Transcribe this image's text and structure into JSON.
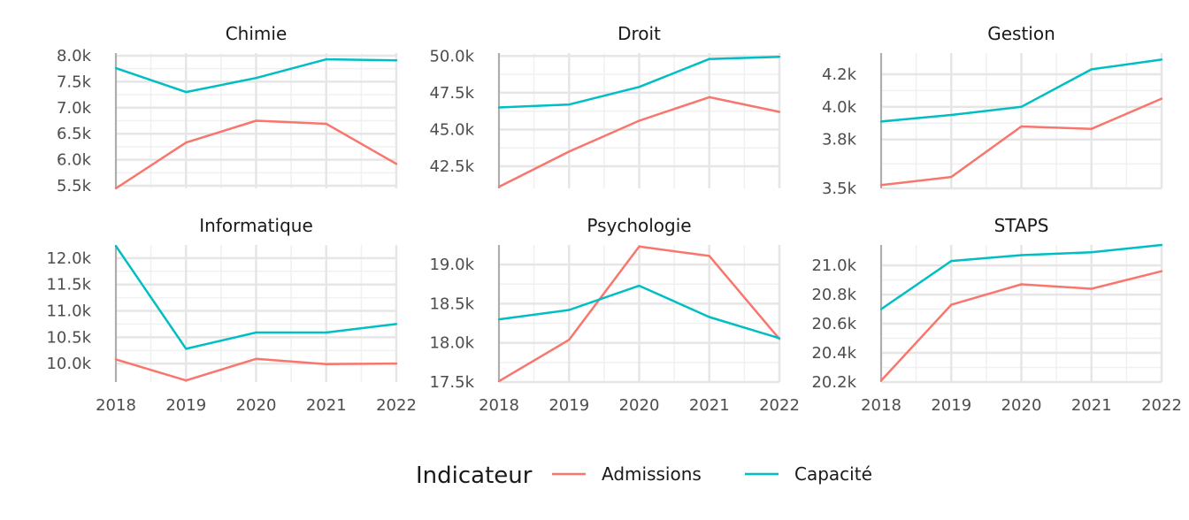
{
  "chart_data": {
    "type": "line",
    "x": [
      2018,
      2019,
      2020,
      2021,
      2022
    ],
    "legend": {
      "title": "Indicateur",
      "position": "bottom",
      "entries": [
        {
          "name": "Admissions",
          "color": "#F8766D"
        },
        {
          "name": "Capacité",
          "color": "#00BFC4"
        }
      ]
    },
    "grid": true,
    "panels": [
      {
        "title": "Chimie",
        "ylim": [
          5450,
          8050
        ],
        "yticks": [
          5500,
          6000,
          6500,
          7000,
          7500,
          8000
        ],
        "ytick_labels": [
          "5.5k",
          "6.0k",
          "6.5k",
          "7.0k",
          "7.5k",
          "8.0k"
        ],
        "series": [
          {
            "name": "Admissions",
            "values": [
              5450,
              6330,
              6750,
              6690,
              5920
            ]
          },
          {
            "name": "Capacité",
            "values": [
              7760,
              7300,
              7570,
              7930,
              7910
            ]
          }
        ]
      },
      {
        "title": "Droit",
        "ylim": [
          41000,
          50200
        ],
        "yticks": [
          42500,
          45000,
          47500,
          50000
        ],
        "ytick_labels": [
          "42.5k",
          "45.0k",
          "47.5k",
          "50.0k"
        ],
        "series": [
          {
            "name": "Admissions",
            "values": [
              41100,
              43500,
              45600,
              47200,
              46200
            ]
          },
          {
            "name": "Capacité",
            "values": [
              46500,
              46700,
              47900,
              49800,
              49950
            ]
          }
        ]
      },
      {
        "title": "Gestion",
        "ylim": [
          3500,
          4330
        ],
        "yticks": [
          3500,
          3800,
          4000,
          4200
        ],
        "ytick_labels": [
          "3.5k",
          "3.8k",
          "4.0k",
          "4.2k"
        ],
        "series": [
          {
            "name": "Admissions",
            "values": [
              3520,
              3570,
              3880,
              3865,
              4050
            ]
          },
          {
            "name": "Capacité",
            "values": [
              3910,
              3950,
              4000,
              4230,
              4290
            ]
          }
        ]
      },
      {
        "title": "Informatique",
        "ylim": [
          9650,
          12250
        ],
        "yticks": [
          10000,
          10500,
          11000,
          11500,
          12000
        ],
        "ytick_labels": [
          "10.0k",
          "10.5k",
          "11.0k",
          "11.5k",
          "12.0k"
        ],
        "series": [
          {
            "name": "Admissions",
            "values": [
              10080,
              9680,
              10090,
              9990,
              10000
            ]
          },
          {
            "name": "Capacité",
            "values": [
              12230,
              10280,
              10590,
              10590,
              10750
            ]
          }
        ]
      },
      {
        "title": "Psychologie",
        "ylim": [
          17500,
          19250
        ],
        "yticks": [
          17500,
          18000,
          18500,
          19000
        ],
        "ytick_labels": [
          "17.5k",
          "18.0k",
          "18.5k",
          "19.0k"
        ],
        "series": [
          {
            "name": "Admissions",
            "values": [
              17510,
              18040,
              19230,
              19110,
              18050
            ]
          },
          {
            "name": "Capacité",
            "values": [
              18300,
              18420,
              18730,
              18330,
              18060
            ]
          }
        ]
      },
      {
        "title": "STAPS",
        "ylim": [
          20200,
          21140
        ],
        "yticks": [
          20200,
          20400,
          20600,
          20800,
          21000
        ],
        "ytick_labels": [
          "20.2k",
          "20.4k",
          "20.6k",
          "20.8k",
          "21.0k"
        ],
        "series": [
          {
            "name": "Admissions",
            "values": [
              20210,
              20730,
              20870,
              20840,
              20960
            ]
          },
          {
            "name": "Capacité",
            "values": [
              20700,
              21030,
              21070,
              21090,
              21140
            ]
          }
        ]
      }
    ]
  }
}
